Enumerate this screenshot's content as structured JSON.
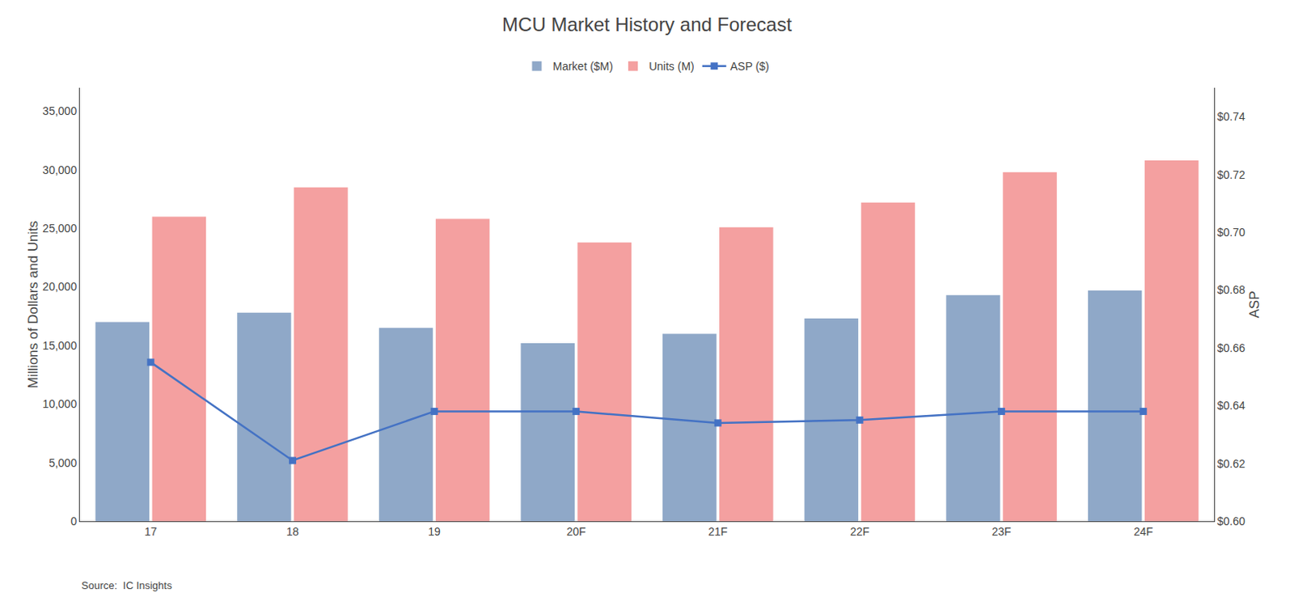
{
  "chart_data": {
    "type": "bar",
    "title": "MCU Market History and Forecast",
    "categories": [
      "17",
      "18",
      "19",
      "20F",
      "21F",
      "22F",
      "23F",
      "24F"
    ],
    "series": [
      {
        "name": "Market ($M)",
        "type": "bar",
        "color": "#8fa8c8",
        "values": [
          17000,
          17800,
          16500,
          15200,
          16000,
          17300,
          19300,
          19700
        ]
      },
      {
        "name": "Units (M)",
        "type": "bar",
        "color": "#f4a0a0",
        "values": [
          26000,
          28500,
          25800,
          23800,
          25100,
          27200,
          29800,
          30800
        ]
      },
      {
        "name": "ASP ($)",
        "type": "line",
        "axis": "y2",
        "color": "#4472c4",
        "marker": "square",
        "line_style": "solid",
        "values": [
          0.655,
          0.621,
          0.638,
          0.638,
          0.634,
          0.635,
          0.638,
          0.638
        ]
      }
    ],
    "ylabel": "Millions of Dollars and Units",
    "y2label": "ASP",
    "ylim": [
      0,
      37000
    ],
    "yticks": [
      0,
      {
        "value": 5000,
        "label": "5,000"
      },
      {
        "value": 10000,
        "label": "10,000"
      },
      {
        "value": 15000,
        "label": "15,000"
      },
      {
        "value": 20000,
        "label": "20,000"
      },
      {
        "value": 25000,
        "label": "25,000"
      },
      {
        "value": 30000,
        "label": "30,000"
      },
      {
        "value": 35000,
        "label": "35,000"
      }
    ],
    "y2lim": [
      0.6,
      0.75
    ],
    "y2ticks": [
      {
        "value": 0.6,
        "label": "$0.60"
      },
      {
        "value": 0.62,
        "label": "$0.62"
      },
      {
        "value": 0.64,
        "label": "$0.64"
      },
      {
        "value": 0.66,
        "label": "$0.66"
      },
      {
        "value": 0.68,
        "label": "$0.68"
      },
      {
        "value": 0.7,
        "label": "$0.70"
      },
      {
        "value": 0.72,
        "label": "$0.72"
      },
      {
        "value": 0.74,
        "label": "$0.74"
      }
    ],
    "annotations": [
      "Source:  IC Insights"
    ],
    "grid": false,
    "legend": "top"
  }
}
